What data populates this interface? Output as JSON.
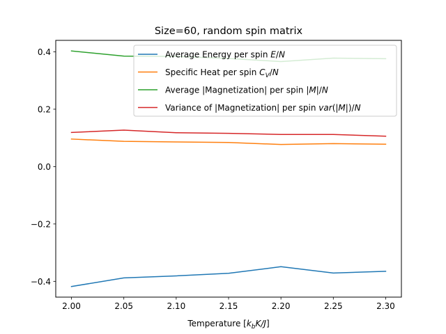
{
  "chart_data": {
    "type": "line",
    "title": "Size=60, random spin matrix",
    "xlabel": "Temperature [k_bK/J]",
    "ylabel": "",
    "xlim": [
      1.985,
      2.315
    ],
    "ylim": [
      -0.455,
      0.44
    ],
    "x": [
      2.0,
      2.05,
      2.1,
      2.15,
      2.2,
      2.25,
      2.3
    ],
    "x_ticks": [
      "2.00",
      "2.05",
      "2.10",
      "2.15",
      "2.20",
      "2.25",
      "2.30"
    ],
    "y_ticks": [
      {
        "value": 0.4,
        "label": "0.4"
      },
      {
        "value": 0.2,
        "label": "0.2"
      },
      {
        "value": 0.0,
        "label": "0.0"
      },
      {
        "value": -0.2,
        "label": "−0.2"
      },
      {
        "value": -0.4,
        "label": "−0.4"
      }
    ],
    "grid": false,
    "legend_position": "upper-right",
    "series": [
      {
        "name": "Average Energy per spin E/N",
        "color": "#1f77b4",
        "values": [
          -0.418,
          -0.388,
          -0.381,
          -0.372,
          -0.349,
          -0.371,
          -0.365
        ]
      },
      {
        "name": "Specific Heat per spin C_V/N",
        "color": "#ff7f0e",
        "values": [
          0.096,
          0.088,
          0.086,
          0.084,
          0.077,
          0.08,
          0.078
        ]
      },
      {
        "name": "Average |Magnetization| per spin |M|/N",
        "color": "#2ca02c",
        "values": [
          0.403,
          0.385,
          0.384,
          0.377,
          0.366,
          0.378,
          0.376
        ]
      },
      {
        "name": "Variance of |Magnetization| per spin var(|M|)/N",
        "color": "#d62728",
        "values": [
          0.119,
          0.127,
          0.118,
          0.116,
          0.112,
          0.112,
          0.106
        ]
      }
    ]
  }
}
